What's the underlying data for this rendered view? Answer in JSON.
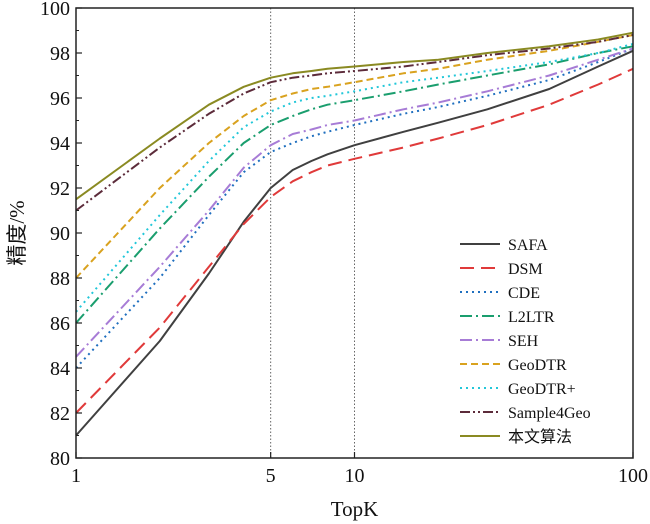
{
  "chart_data": {
    "type": "line",
    "xlabel": "TopK",
    "ylabel": "精度/%",
    "xlim": [
      1,
      100
    ],
    "ylim": [
      80,
      100
    ],
    "xscale": "log",
    "x_ticks": [
      1,
      5,
      10,
      100
    ],
    "y_ticks": [
      80,
      82,
      84,
      86,
      88,
      90,
      92,
      94,
      96,
      98,
      100
    ],
    "reference_lines_x": [
      5,
      10
    ],
    "legend_position": "lower-right",
    "grid": false,
    "x": [
      1,
      2,
      3,
      4,
      5,
      6,
      7,
      8,
      10,
      15,
      20,
      30,
      50,
      75,
      100
    ],
    "series": [
      {
        "name": "SAFA",
        "color": "#404040",
        "dash": "solid",
        "values": [
          81.0,
          85.2,
          88.2,
          90.5,
          92.0,
          92.8,
          93.2,
          93.5,
          93.9,
          94.5,
          94.9,
          95.5,
          96.4,
          97.4,
          98.1
        ]
      },
      {
        "name": "DSM",
        "color": "#e03a3a",
        "dash": "longdash",
        "values": [
          82.0,
          85.8,
          88.5,
          90.4,
          91.6,
          92.3,
          92.7,
          93.0,
          93.3,
          93.8,
          94.2,
          94.8,
          95.7,
          96.6,
          97.3
        ]
      },
      {
        "name": "CDE",
        "color": "#1f6fbf",
        "dash": "dot",
        "values": [
          84.0,
          88.0,
          90.8,
          92.7,
          93.6,
          94.0,
          94.3,
          94.5,
          94.8,
          95.3,
          95.6,
          96.1,
          96.8,
          97.6,
          98.2
        ]
      },
      {
        "name": "L2LTR",
        "color": "#1a9e6e",
        "dash": "dashdot",
        "values": [
          86.0,
          90.2,
          92.5,
          94.0,
          94.8,
          95.2,
          95.5,
          95.7,
          95.9,
          96.3,
          96.6,
          97.0,
          97.5,
          98.0,
          98.3
        ]
      },
      {
        "name": "SEH",
        "color": "#a77cd6",
        "dash": "dashdot",
        "values": [
          84.5,
          88.5,
          91.0,
          92.9,
          93.9,
          94.4,
          94.6,
          94.8,
          95.0,
          95.5,
          95.8,
          96.3,
          97.0,
          97.7,
          98.2
        ]
      },
      {
        "name": "GeoDTR",
        "color": "#d9a21f",
        "dash": "dash",
        "values": [
          88.0,
          92.0,
          94.0,
          95.2,
          95.9,
          96.2,
          96.4,
          96.5,
          96.7,
          97.1,
          97.3,
          97.7,
          98.1,
          98.5,
          98.8
        ]
      },
      {
        "name": "GeoDTR+",
        "color": "#22c7d9",
        "dash": "dot",
        "values": [
          86.5,
          90.8,
          93.2,
          94.7,
          95.4,
          95.8,
          96.0,
          96.1,
          96.3,
          96.7,
          96.9,
          97.2,
          97.6,
          98.0,
          98.4
        ]
      },
      {
        "name": "Sample4Geo",
        "color": "#5c2b3a",
        "dash": "dashdotdot",
        "values": [
          91.0,
          93.8,
          95.3,
          96.2,
          96.7,
          96.9,
          97.0,
          97.1,
          97.2,
          97.4,
          97.6,
          97.9,
          98.2,
          98.5,
          98.8
        ]
      },
      {
        "name": "本文算法",
        "color": "#8a8a22",
        "dash": "solid",
        "values": [
          91.5,
          94.2,
          95.7,
          96.5,
          96.9,
          97.1,
          97.2,
          97.3,
          97.4,
          97.6,
          97.7,
          98.0,
          98.3,
          98.6,
          98.9
        ]
      }
    ]
  }
}
